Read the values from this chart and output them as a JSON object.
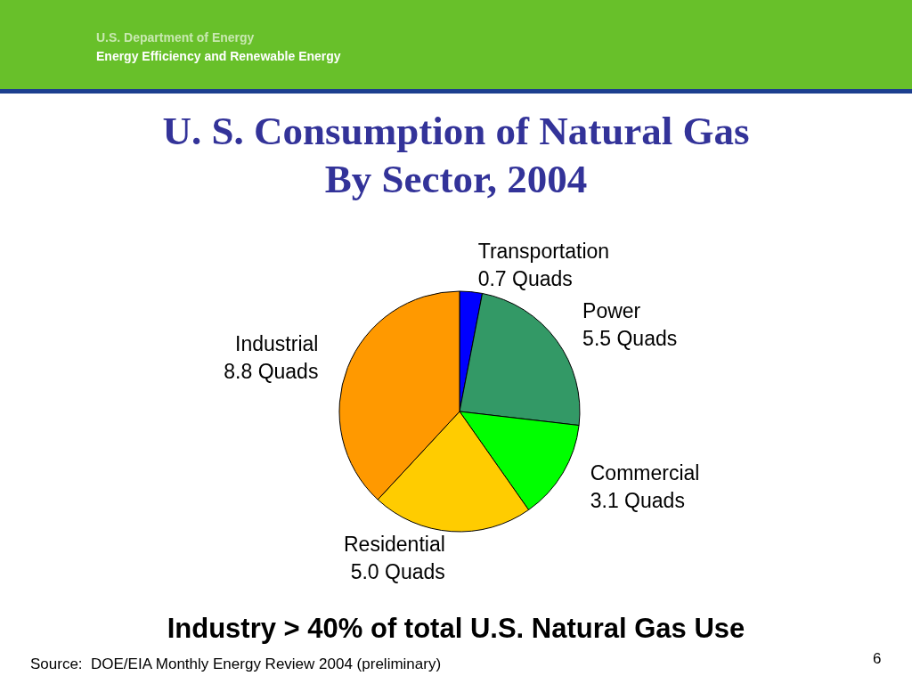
{
  "chart_data": {
    "type": "pie",
    "title": "U. S. Consumption of Natural Gas By Sector, 2004",
    "categories": [
      "Transportation",
      "Power",
      "Commercial",
      "Residential",
      "Industrial"
    ],
    "values": [
      0.7,
      5.5,
      3.1,
      5.0,
      8.8
    ],
    "value_labels": [
      "0.7 Quads",
      "5.5 Quads",
      "3.1 Quads",
      "5.0 Quads",
      "8.8 Quads"
    ],
    "colors": [
      "#0000ff",
      "#339966",
      "#00ff00",
      "#ffcc00",
      "#ff9900"
    ],
    "legend": false,
    "annotations": [
      "U.S. Department of Energy",
      "Energy Efficiency and Renewable Energy",
      "Industry > 40% of total U.S. Natural Gas Use",
      "Source:  DOE/EIA Monthly Energy Review 2004 (preliminary)",
      "6"
    ]
  }
}
